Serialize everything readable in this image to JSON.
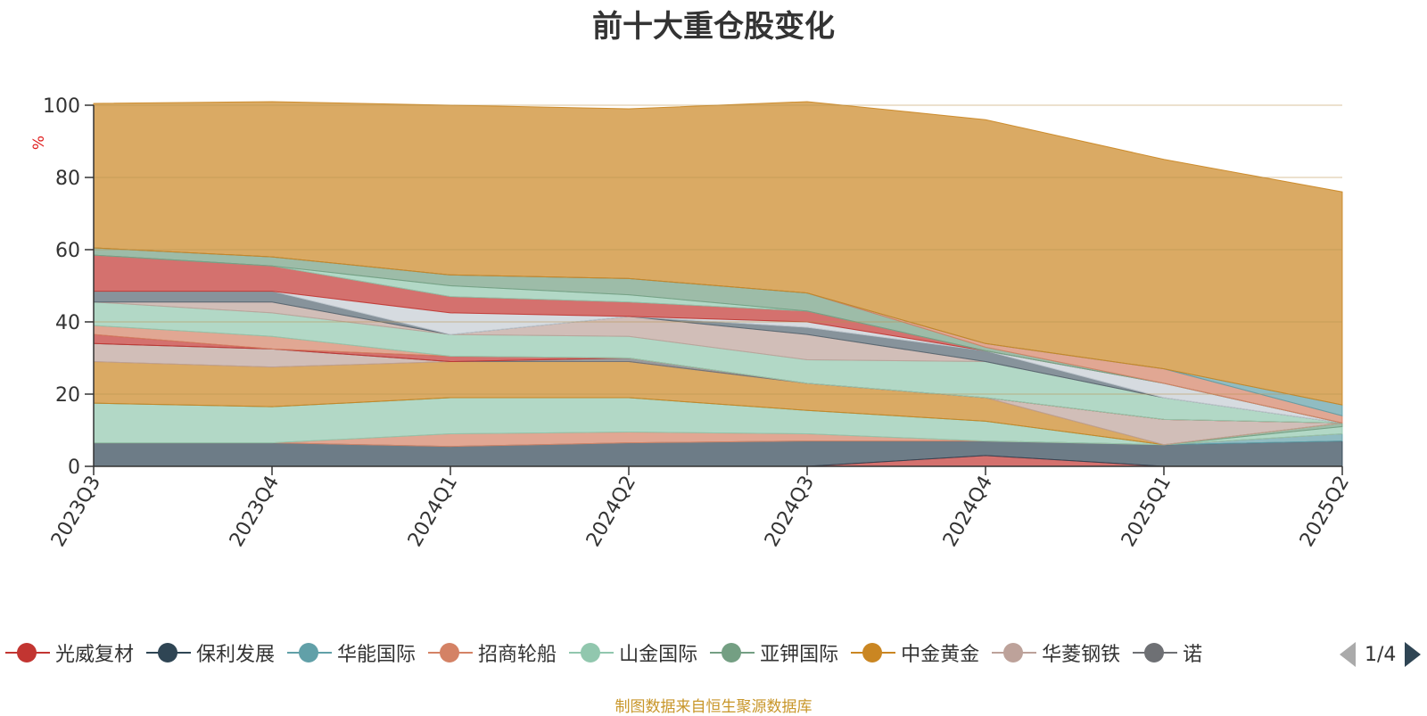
{
  "title": "前十大重仓股变化",
  "source_note": "制图数据来自恒生聚源数据库",
  "legend_visible": [
    "光威复材",
    "保利发展",
    "华能国际",
    "招商轮船",
    "山金国际",
    "亚钾国际",
    "中金黄金",
    "华菱钢铁",
    "诺"
  ],
  "legend_colors": [
    "#c23531",
    "#2f4554",
    "#61a0a8",
    "#d48265",
    "#91c7ae",
    "#749f83",
    "#ca8622",
    "#bda29a",
    "#6e7074"
  ],
  "pager": {
    "text": "1/4"
  },
  "chart_data": {
    "type": "area",
    "stacked": true,
    "categories": [
      "2023Q3",
      "2023Q4",
      "2024Q1",
      "2024Q2",
      "2024Q3",
      "2024Q4",
      "2025Q1",
      "2025Q2"
    ],
    "ylabel": "%",
    "ylim": [
      0,
      100
    ],
    "yticks": [
      0,
      20,
      40,
      60,
      80,
      100
    ],
    "grid": true,
    "legend_position": "bottom",
    "series": [
      {
        "name": "光威复材",
        "color": "#c23531",
        "values": [
          0,
          0,
          0,
          0,
          0,
          3,
          0,
          0
        ]
      },
      {
        "name": "保利发展",
        "color": "#2f4554",
        "values": [
          6.5,
          6.5,
          5.5,
          6.5,
          7,
          4,
          6,
          7
        ]
      },
      {
        "name": "华能国际",
        "color": "#61a0a8",
        "values": [
          0,
          0,
          0,
          0,
          0,
          0,
          0,
          2
        ]
      },
      {
        "name": "招商轮船",
        "color": "#d48265",
        "values": [
          0,
          0,
          3.5,
          3,
          2,
          0,
          0,
          0
        ]
      },
      {
        "name": "山金国际",
        "color": "#91c7ae",
        "values": [
          11,
          10,
          10,
          9.5,
          6.5,
          5.5,
          0,
          2
        ]
      },
      {
        "name": "亚钾国际",
        "color": "#749f83",
        "values": [
          0,
          0,
          0,
          0,
          0,
          0,
          0,
          1
        ]
      },
      {
        "name": "中金黄金",
        "color": "#ca8622",
        "values": [
          11.5,
          11,
          10,
          10,
          7.5,
          6.5,
          0,
          0
        ]
      },
      {
        "name": "华菱钢铁",
        "color": "#bda29a",
        "values": [
          5,
          5,
          0,
          0,
          0,
          0,
          7,
          0
        ]
      },
      {
        "name": "诺",
        "color": "#6e7074",
        "values": [
          0,
          0,
          0,
          1,
          0,
          0,
          0,
          0
        ]
      },
      {
        "name": "",
        "color": "#c23531",
        "values": [
          2.5,
          0,
          1.5,
          0,
          0,
          0,
          0,
          0
        ]
      },
      {
        "name": "",
        "color": "#d48265",
        "values": [
          2.5,
          3.5,
          0,
          0,
          0,
          0,
          0,
          0
        ]
      },
      {
        "name": "",
        "color": "#91c7ae",
        "values": [
          6.5,
          6.5,
          6,
          6,
          6.5,
          10,
          6,
          0
        ]
      },
      {
        "name": "",
        "color": "#bda29a",
        "values": [
          0,
          3,
          0,
          5.5,
          7,
          0,
          0,
          0
        ]
      },
      {
        "name": "",
        "color": "#546570",
        "values": [
          3,
          3,
          0,
          0,
          2,
          3,
          0,
          0
        ]
      },
      {
        "name": "",
        "color": "#c4ccd3",
        "values": [
          0,
          0,
          6,
          0,
          1.5,
          0,
          4,
          0
        ]
      },
      {
        "name": "",
        "color": "#c23531",
        "values": [
          10,
          7,
          4.5,
          4,
          3,
          0,
          0,
          0
        ]
      },
      {
        "name": "",
        "color": "#91c7ae",
        "values": [
          0,
          0,
          3,
          2,
          0,
          0,
          0,
          0
        ]
      },
      {
        "name": "",
        "color": "#749f83",
        "values": [
          2,
          2.5,
          3,
          4.5,
          5,
          1,
          0,
          0
        ]
      },
      {
        "name": "",
        "color": "#d48265",
        "values": [
          0,
          0,
          0,
          0,
          0,
          1,
          4,
          2
        ]
      },
      {
        "name": "",
        "color": "#61a0a8",
        "values": [
          0,
          0,
          0,
          0,
          0,
          0,
          0,
          3
        ]
      },
      {
        "name": "",
        "color": "#ca8622",
        "values": [
          40,
          43,
          47,
          47,
          53,
          62,
          58,
          59
        ]
      }
    ]
  }
}
